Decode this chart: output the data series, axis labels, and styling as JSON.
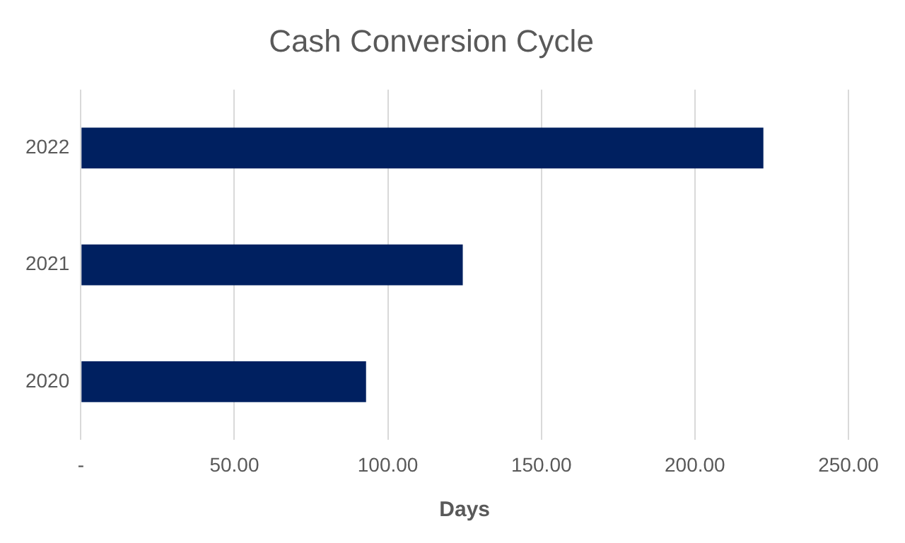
{
  "chart_data": {
    "type": "bar",
    "orientation": "horizontal",
    "title": "Cash Conversion Cycle",
    "xlabel": "Days",
    "categories": [
      "2022",
      "2021",
      "2020"
    ],
    "values": [
      222.3,
      124.4,
      92.9
    ],
    "color": "#002060",
    "xlim": [
      0,
      250
    ],
    "xticks": [
      {
        "value": 0,
        "label": "-"
      },
      {
        "value": 50,
        "label": "50.00"
      },
      {
        "value": 100,
        "label": "100.00"
      },
      {
        "value": 150,
        "label": "150.00"
      },
      {
        "value": 200,
        "label": "200.00"
      },
      {
        "value": 250,
        "label": "250.00"
      }
    ],
    "grid": "x",
    "legend": false
  }
}
